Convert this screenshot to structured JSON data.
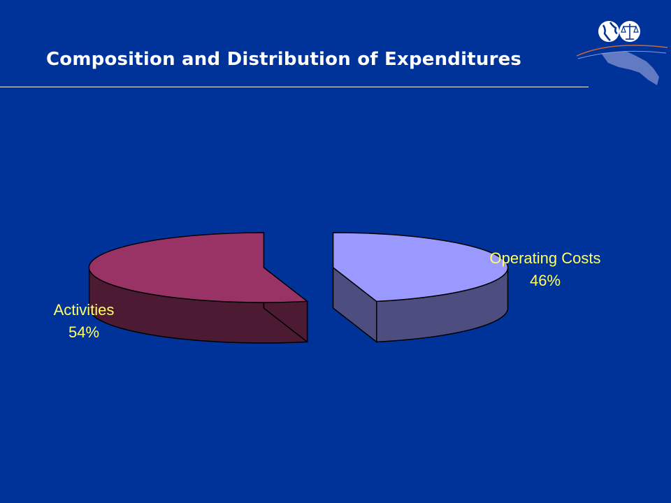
{
  "header": {
    "title": "Composition and Distribution of Expenditures"
  },
  "logo": {
    "icon": "oas-globe-scales-logo"
  },
  "colors": {
    "background": "#003399",
    "label_text": "#FFFF66",
    "activities_top": "#993366",
    "activities_side": "#4D1A33",
    "operating_top": "#9999FF",
    "operating_side": "#4D4D80"
  },
  "chart_data": {
    "type": "pie",
    "style": "3d-exploded",
    "title": "Composition and Distribution of Expenditures",
    "slices": [
      {
        "name": "Activities",
        "value": 54,
        "label": "Activities",
        "pct_label": "54%",
        "color": "#993366"
      },
      {
        "name": "Operating Costs",
        "value": 46,
        "label": "Operating Costs",
        "pct_label": "46%",
        "color": "#9999FF"
      }
    ],
    "legend": "none"
  }
}
